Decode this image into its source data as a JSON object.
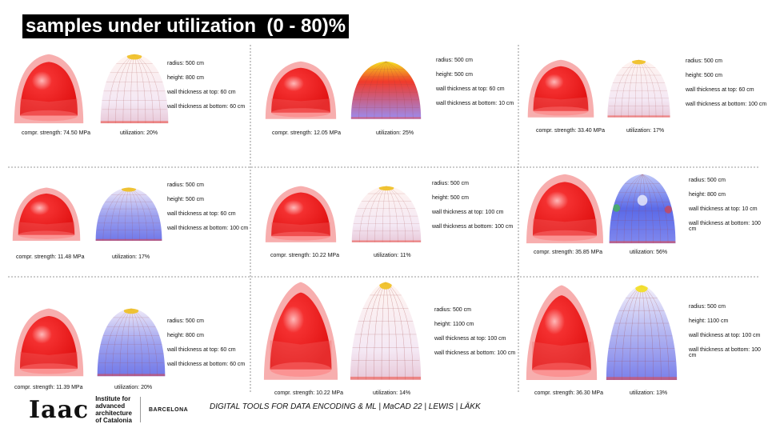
{
  "title": "samples under utilization  (0 - 80)%",
  "samples": [
    {
      "radius": "radius: 500 cm",
      "height": "height: 800 cm",
      "top": "wall thickness at top: 60 cm",
      "bottom": "wall thickness at bottom: 60 cm",
      "strength": "compr. strength: 74.50 MPa",
      "utilization": "utilization: 20%"
    },
    {
      "radius": "radius: 500 cm",
      "height": "height: 500 cm",
      "top": "wall thickness at top: 60 cm",
      "bottom": "wall thickness at bottom: 10 cm",
      "strength": "compr. strength: 12.05 MPa",
      "utilization": "utilization: 25%"
    },
    {
      "radius": "radius: 500 cm",
      "height": "height: 500 cm",
      "top": "wall thickness at top: 60 cm",
      "bottom": "wall thickness at bottom: 100 cm",
      "strength": "compr. strength: 33.40 MPa",
      "utilization": "utilization: 17%"
    },
    {
      "radius": "radius: 500 cm",
      "height": "height: 500 cm",
      "top": "wall thickness at top: 60 cm",
      "bottom": "wall thickness at bottom: 100 cm",
      "strength": "compr. strength: 11.48 MPa",
      "utilization": "utilization: 17%"
    },
    {
      "radius": "radius: 500 cm",
      "height": "height: 500 cm",
      "top": "wall thickness at top: 100 cm",
      "bottom": "wall thickness at bottom: 100 cm",
      "strength": "compr. strength: 10.22  MPa",
      "utilization": "utilization: 11%"
    },
    {
      "radius": "radius: 500 cm",
      "height": "height: 800 cm",
      "top": "wall thickness at top: 10 cm",
      "bottom": "wall thickness at bottom: 100 cm",
      "strength": "compr. strength: 35.85 MPa",
      "utilization": "utilization: 56%"
    },
    {
      "radius": "radius: 500 cm",
      "height": "height: 800 cm",
      "top": "wall thickness at top: 60 cm",
      "bottom": "wall thickness at bottom: 60 cm",
      "strength": "compr. strength: 11.39 MPa",
      "utilization": "utilization: 20%"
    },
    {
      "radius": "radius: 500 cm",
      "height": "height: 1100 cm",
      "top": "wall thickness at top: 100 cm",
      "bottom": "wall thickness at bottom: 100 cm",
      "strength": "compr. strength: 10.22 MPa",
      "utilization": "utilization: 14%"
    },
    {
      "radius": "radius: 500 cm",
      "height": "height: 1100 cm",
      "top": "wall thickness at top: 100 cm",
      "bottom": "wall thickness at bottom: 100 cm",
      "strength": "compr. strength: 36.30 MPa",
      "utilization": "utilization: 13%"
    }
  ],
  "footer": {
    "logo": "Iaac",
    "institute": [
      "Institute for",
      "advanced",
      "architecture",
      "of Catalonia"
    ],
    "city": "BARCELONA",
    "credit": "DIGITAL TOOLS FOR DATA ENCODING & ML | MaCAD 22 | LEWIS | LÄKK"
  },
  "colors": {
    "shell": "#f01818",
    "shell_outer": "#f6a0a0",
    "mesh_blue": "#8a8ff0",
    "mesh_red": "#f03a2a",
    "mesh_yellow": "#f4e020"
  }
}
